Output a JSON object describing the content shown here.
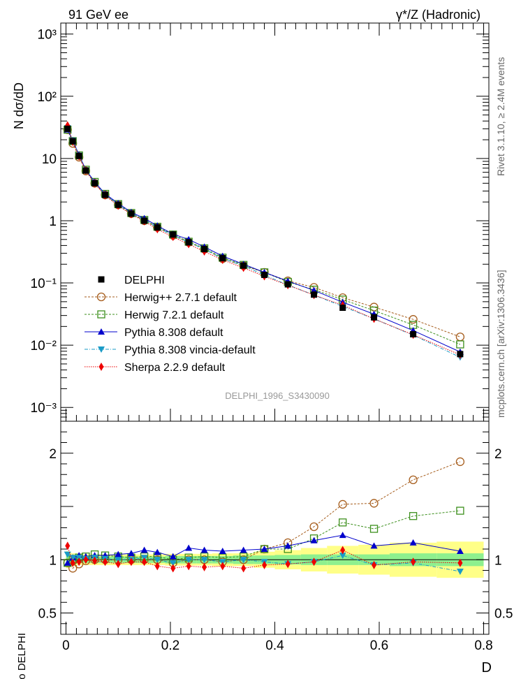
{
  "header": {
    "left": "91 GeV ee",
    "right": "γ*/Z (Hadronic)"
  },
  "side_labels": {
    "top": "Rivet 3.1.10, ≥ 2.4M events",
    "bottom": "mcplots.cern.ch [arXiv:1306.3436]"
  },
  "analysis_label": "DELPHI_1996_S3430090",
  "colors": {
    "herwigpp": "#a65d1c",
    "herwig7": "#3c8f1c",
    "pythia": "#0000cc",
    "vincia": "#1a9bc7",
    "sherpa": "#ee0000",
    "band_inner": "#8ef08e",
    "band_outer": "#ffff88"
  },
  "chart_data": [
    {
      "type": "line",
      "panel": "main",
      "ylabel": "N dσ/dD",
      "yscale": "log",
      "ylim": [
        0.0006,
        1500
      ],
      "xlim": [
        -0.01,
        0.81
      ],
      "yticks": [
        {
          "value": 1000,
          "label": "10³"
        },
        {
          "value": 100,
          "label": "10²"
        },
        {
          "value": 10,
          "label": "10"
        },
        {
          "value": 1,
          "label": "1"
        },
        {
          "value": 0.1,
          "label": "10⁻¹"
        },
        {
          "value": 0.01,
          "label": "10⁻²"
        },
        {
          "value": 0.001,
          "label": "10⁻³"
        }
      ],
      "x": [
        0.003,
        0.013,
        0.025,
        0.038,
        0.055,
        0.075,
        0.1,
        0.125,
        0.15,
        0.175,
        0.205,
        0.235,
        0.265,
        0.3,
        0.34,
        0.38,
        0.425,
        0.475,
        0.53,
        0.59,
        0.665,
        0.755
      ],
      "series": [
        {
          "name": "DELPHI",
          "key": "data",
          "values": [
            30,
            19,
            11,
            6.4,
            4.0,
            2.6,
            1.8,
            1.3,
            1.0,
            0.78,
            0.6,
            0.45,
            0.35,
            0.25,
            0.19,
            0.135,
            0.095,
            0.065,
            0.04,
            0.028,
            0.015,
            0.0072
          ]
        },
        {
          "name": "Herwig++ 2.7.1 default",
          "key": "herwigpp",
          "values": [
            29,
            17.5,
            10.5,
            6.3,
            4.0,
            2.6,
            1.8,
            1.3,
            1.0,
            0.78,
            0.58,
            0.45,
            0.35,
            0.245,
            0.19,
            0.148,
            0.108,
            0.085,
            0.058,
            0.041,
            0.026,
            0.0136
          ]
        },
        {
          "name": "Herwig 7.2.1 default",
          "key": "herwig7",
          "values": [
            29,
            19,
            11.2,
            6.6,
            4.2,
            2.7,
            1.85,
            1.33,
            1.03,
            0.8,
            0.6,
            0.46,
            0.36,
            0.255,
            0.195,
            0.148,
            0.104,
            0.078,
            0.054,
            0.036,
            0.0212,
            0.0103
          ]
        },
        {
          "name": "Pythia 8.308 default",
          "key": "pythia",
          "values": [
            29,
            19.5,
            11.5,
            6.6,
            4.2,
            2.7,
            1.9,
            1.37,
            1.09,
            0.83,
            0.61,
            0.5,
            0.38,
            0.27,
            0.2,
            0.148,
            0.107,
            0.076,
            0.049,
            0.0315,
            0.0172,
            0.0078
          ]
        },
        {
          "name": "Pythia 8.308 vincia-default",
          "key": "vincia",
          "values": [
            31,
            19.5,
            11.2,
            6.5,
            4.05,
            2.62,
            1.8,
            1.3,
            1.02,
            0.78,
            0.58,
            0.45,
            0.35,
            0.245,
            0.19,
            0.133,
            0.093,
            0.064,
            0.042,
            0.0265,
            0.0145,
            0.0064
          ]
        },
        {
          "name": "Sherpa 2.2.9 default",
          "key": "sherpa",
          "values": [
            34,
            18.5,
            10.8,
            6.4,
            3.95,
            2.55,
            1.74,
            1.27,
            0.98,
            0.73,
            0.55,
            0.42,
            0.32,
            0.235,
            0.175,
            0.128,
            0.092,
            0.064,
            0.044,
            0.0265,
            0.0147,
            0.007
          ]
        }
      ]
    },
    {
      "type": "line",
      "panel": "ratio",
      "xlabel": "D",
      "ylabel": "Ratio to DELPHI",
      "ylim": [
        0.3,
        2.3
      ],
      "xlim": [
        -0.01,
        0.81
      ],
      "xticks": [
        0,
        0.2,
        0.4,
        0.6,
        0.8
      ],
      "xticklabels": [
        "0",
        "0.2",
        "0.4",
        "0.6",
        "0.8"
      ],
      "yticks": [
        0.5,
        1,
        2
      ],
      "yticklabels": [
        "0.5",
        "1",
        "2"
      ],
      "x": [
        0.003,
        0.013,
        0.025,
        0.038,
        0.055,
        0.075,
        0.1,
        0.125,
        0.15,
        0.175,
        0.205,
        0.235,
        0.265,
        0.3,
        0.34,
        0.38,
        0.425,
        0.475,
        0.53,
        0.59,
        0.665,
        0.755
      ],
      "band_edges": [
        0,
        0.005,
        0.01,
        0.02,
        0.03,
        0.045,
        0.065,
        0.085,
        0.11,
        0.14,
        0.16,
        0.19,
        0.22,
        0.25,
        0.28,
        0.32,
        0.36,
        0.4,
        0.45,
        0.5,
        0.56,
        0.62,
        0.71,
        0.8
      ],
      "band_inner": [
        0.05,
        0.04,
        0.035,
        0.03,
        0.03,
        0.03,
        0.03,
        0.03,
        0.03,
        0.03,
        0.03,
        0.035,
        0.035,
        0.035,
        0.035,
        0.04,
        0.04,
        0.045,
        0.05,
        0.05,
        0.05,
        0.06,
        0.06
      ],
      "band_outer": [
        0.08,
        0.07,
        0.06,
        0.05,
        0.05,
        0.05,
        0.05,
        0.05,
        0.05,
        0.05,
        0.05,
        0.055,
        0.055,
        0.055,
        0.06,
        0.06,
        0.075,
        0.09,
        0.11,
        0.13,
        0.14,
        0.16,
        0.17
      ],
      "series": [
        {
          "name": "Herwig++ 2.7.1 default",
          "key": "herwigpp",
          "values": [
            0.97,
            0.92,
            0.96,
            0.99,
            1.0,
            1.0,
            1.0,
            1.0,
            1.0,
            1.0,
            0.97,
            1.0,
            1.0,
            0.98,
            1.0,
            1.1,
            1.16,
            1.31,
            1.52,
            1.53,
            1.75,
            1.92
          ]
        },
        {
          "name": "Herwig 7.2.1 default",
          "key": "herwig7",
          "values": [
            0.97,
            1.0,
            1.02,
            1.03,
            1.05,
            1.04,
            1.03,
            1.02,
            1.03,
            1.03,
            1.0,
            1.02,
            1.03,
            1.02,
            1.03,
            1.1,
            1.1,
            1.2,
            1.35,
            1.29,
            1.41,
            1.46
          ]
        },
        {
          "name": "Pythia 8.308 default",
          "key": "pythia",
          "values": [
            0.97,
            1.02,
            1.04,
            1.03,
            1.04,
            1.04,
            1.05,
            1.06,
            1.09,
            1.07,
            1.03,
            1.11,
            1.09,
            1.08,
            1.09,
            1.1,
            1.13,
            1.18,
            1.23,
            1.13,
            1.16,
            1.08
          ]
        },
        {
          "name": "Pythia 8.308 vincia-default",
          "key": "vincia",
          "values": [
            1.05,
            1.02,
            1.02,
            1.01,
            1.02,
            1.01,
            1.0,
            1.0,
            1.02,
            1.0,
            0.97,
            1.0,
            1.0,
            0.98,
            1.0,
            0.98,
            0.96,
            0.98,
            1.04,
            0.95,
            0.97,
            0.89
          ]
        },
        {
          "name": "Sherpa 2.2.9 default",
          "key": "sherpa",
          "values": [
            1.13,
            0.97,
            0.98,
            1.0,
            0.99,
            0.98,
            0.96,
            0.98,
            0.98,
            0.94,
            0.92,
            0.94,
            0.93,
            0.94,
            0.92,
            0.95,
            0.96,
            0.98,
            1.09,
            0.95,
            0.98,
            0.97
          ]
        }
      ]
    }
  ]
}
